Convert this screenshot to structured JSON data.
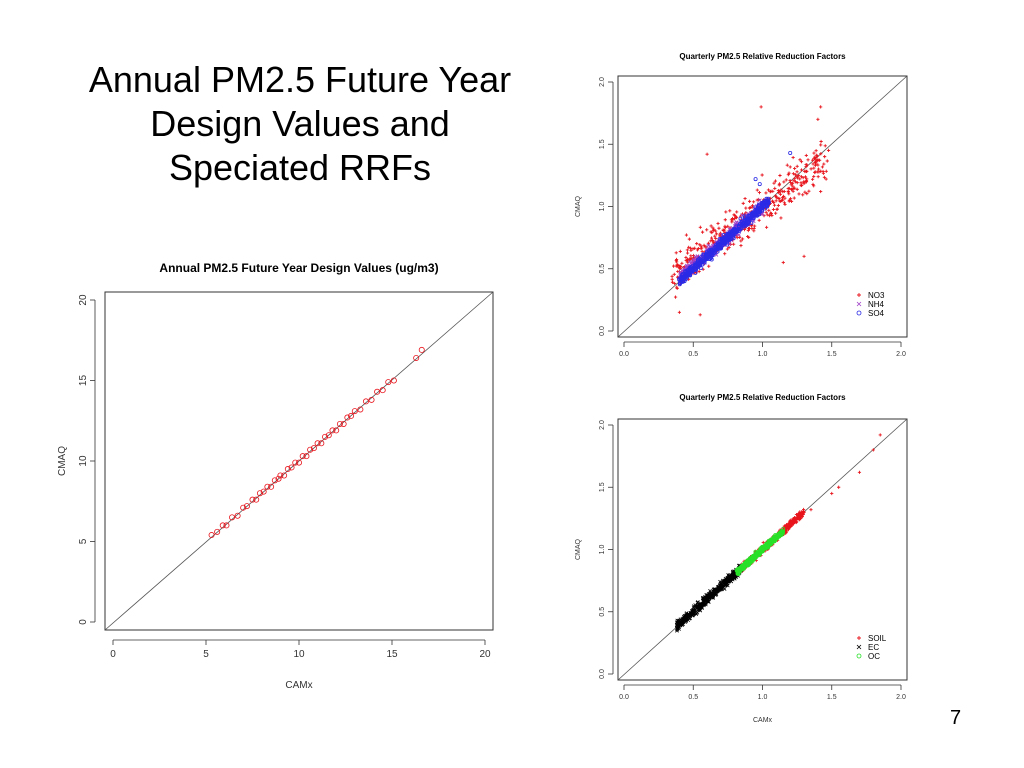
{
  "slide": {
    "title_lines": [
      "Annual PM2.5 Future Year",
      "Design Values and",
      "Speciated RRFs"
    ],
    "page_number": "7"
  },
  "colors": {
    "red": "#e8141c",
    "blue": "#2a2ae6",
    "purple": "#a040c8",
    "black": "#000000",
    "green": "#28e028",
    "axis": "#333333"
  },
  "chart_data": [
    {
      "type": "scatter",
      "title": "Annual PM2.5 Future Year Design Values (ug/m3)",
      "xlabel": "CAMx",
      "ylabel": "CMAQ",
      "xlim": [
        0,
        20
      ],
      "ylim": [
        0,
        20
      ],
      "xticks": [
        "0",
        "5",
        "10",
        "15",
        "20"
      ],
      "yticks": [
        "0",
        "5",
        "10",
        "15",
        "20"
      ],
      "reference_line": "1:1",
      "series": [
        {
          "marker": "o",
          "color": "#e8141c",
          "x": [
            5.3,
            5.6,
            5.9,
            6.1,
            6.4,
            6.7,
            7.0,
            7.2,
            7.5,
            7.7,
            7.9,
            8.1,
            8.3,
            8.5,
            8.7,
            8.9,
            9.0,
            9.2,
            9.4,
            9.6,
            9.8,
            10.0,
            10.2,
            10.4,
            10.6,
            10.8,
            11.0,
            11.2,
            11.4,
            11.6,
            11.8,
            12.0,
            12.2,
            12.4,
            12.6,
            12.8,
            13.0,
            13.3,
            13.6,
            13.9,
            14.2,
            14.5,
            14.8,
            15.1,
            16.3,
            16.6
          ],
          "y": [
            5.4,
            5.6,
            6.0,
            6.0,
            6.5,
            6.6,
            7.1,
            7.2,
            7.6,
            7.6,
            8.0,
            8.1,
            8.4,
            8.4,
            8.8,
            8.9,
            9.1,
            9.1,
            9.5,
            9.6,
            9.9,
            9.9,
            10.3,
            10.3,
            10.7,
            10.8,
            11.1,
            11.1,
            11.5,
            11.6,
            11.9,
            11.9,
            12.3,
            12.3,
            12.7,
            12.8,
            13.1,
            13.2,
            13.7,
            13.8,
            14.3,
            14.4,
            14.9,
            15.0,
            16.4,
            16.9
          ]
        }
      ]
    },
    {
      "type": "scatter",
      "title": "Quarterly PM2.5 Relative Reduction Factors",
      "xlabel": "",
      "ylabel": "CMAQ",
      "xlim": [
        0,
        2
      ],
      "ylim": [
        0,
        2
      ],
      "xticks": [
        "0.0",
        "0.5",
        "1.0",
        "1.5",
        "2.0"
      ],
      "yticks": [
        "0.0",
        "0.5",
        "1.0",
        "1.5",
        "2.0"
      ],
      "reference_line": "1:1",
      "legend_position": "bottom-right",
      "series": [
        {
          "name": "NO3",
          "marker": "+",
          "color": "#e8141c",
          "x_range": [
            0.35,
            1.45
          ],
          "slope": 0.85,
          "spread": 0.16,
          "outliers": [
            [
              0.99,
              1.8
            ],
            [
              1.42,
              1.8
            ],
            [
              1.4,
              1.7
            ],
            [
              0.6,
              1.42
            ],
            [
              0.4,
              0.15
            ],
            [
              0.55,
              0.13
            ],
            [
              1.15,
              0.55
            ],
            [
              1.3,
              0.6
            ],
            [
              1.42,
              1.12
            ]
          ]
        },
        {
          "name": "NH4",
          "marker": "x",
          "color": "#a040c8",
          "x_range": [
            0.4,
            1.0
          ],
          "slope": 0.95,
          "spread": 0.05,
          "outliers": []
        },
        {
          "name": "SO4",
          "marker": "o",
          "color": "#2a2ae6",
          "x_range": [
            0.4,
            1.05
          ],
          "slope": 1.0,
          "spread": 0.04,
          "outliers": [
            [
              1.2,
              1.43
            ],
            [
              0.95,
              1.22
            ],
            [
              0.98,
              1.18
            ]
          ]
        }
      ]
    },
    {
      "type": "scatter",
      "title": "Quarterly PM2.5 Relative Reduction Factors",
      "xlabel": "CAMx",
      "ylabel": "CMAQ",
      "xlim": [
        0,
        2
      ],
      "ylim": [
        0,
        2
      ],
      "xticks": [
        "0.0",
        "0.5",
        "1.0",
        "1.5",
        "2.0"
      ],
      "yticks": [
        "0.0",
        "0.5",
        "1.0",
        "1.5",
        "2.0"
      ],
      "reference_line": "1:1",
      "legend_position": "bottom-right",
      "series": [
        {
          "name": "SOIL",
          "marker": "+",
          "color": "#e8141c",
          "x_range": [
            0.85,
            1.3
          ],
          "slope": 1.0,
          "spread": 0.03,
          "outliers": [
            [
              1.85,
              1.92
            ],
            [
              1.8,
              1.8
            ],
            [
              1.55,
              1.5
            ],
            [
              1.5,
              1.45
            ],
            [
              1.35,
              1.32
            ],
            [
              1.7,
              1.62
            ]
          ]
        },
        {
          "name": "EC",
          "marker": "x",
          "color": "#000000",
          "x_range": [
            0.38,
            0.85
          ],
          "slope": 1.0,
          "spread": 0.035,
          "outliers": []
        },
        {
          "name": "OC",
          "marker": "o",
          "color": "#28e028",
          "x_range": [
            0.82,
            1.15
          ],
          "slope": 1.0,
          "spread": 0.02,
          "outliers": []
        }
      ]
    }
  ]
}
